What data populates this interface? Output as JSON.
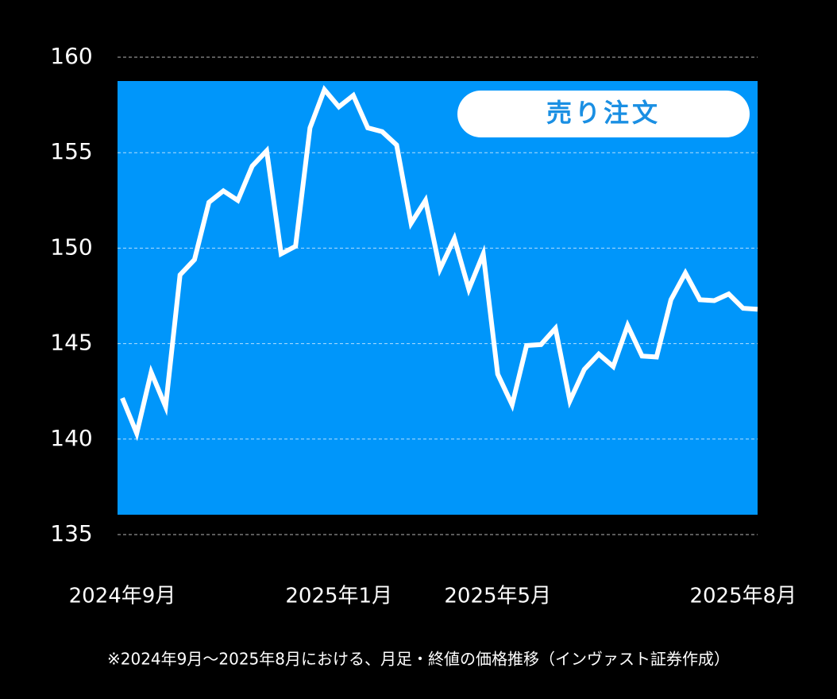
{
  "chart_data": {
    "type": "line",
    "badge": "売り注文",
    "note": "※2024年9月～2025年8月における、月足・終値の価格推移（インヴァスト証券作成）",
    "categories": [
      "2024年9月",
      null,
      null,
      null,
      null,
      null,
      null,
      null,
      null,
      null,
      null,
      null,
      null,
      null,
      null,
      "2025年1月",
      null,
      null,
      null,
      null,
      null,
      null,
      null,
      null,
      null,
      null,
      "2025年5月",
      null,
      null,
      null,
      null,
      null,
      null,
      null,
      null,
      null,
      null,
      null,
      null,
      null,
      null,
      null,
      null,
      "2025年8月",
      null
    ],
    "values": [
      142.15,
      140.3,
      143.5,
      141.7,
      148.6,
      149.4,
      152.4,
      153.0,
      152.5,
      154.3,
      155.1,
      149.7,
      150.1,
      156.3,
      158.3,
      157.4,
      158.0,
      156.3,
      156.1,
      155.4,
      151.3,
      152.5,
      148.9,
      150.5,
      147.85,
      149.7,
      143.4,
      141.8,
      144.9,
      144.95,
      145.8,
      142.0,
      143.65,
      144.45,
      143.8,
      145.95,
      144.35,
      144.3,
      147.3,
      148.7,
      147.3,
      147.25,
      147.6,
      146.85,
      146.8
    ],
    "color": "#ffffff",
    "ylim": [
      135,
      160
    ],
    "yticks": [
      135,
      140,
      145,
      150,
      155,
      160
    ],
    "grid": true
  }
}
